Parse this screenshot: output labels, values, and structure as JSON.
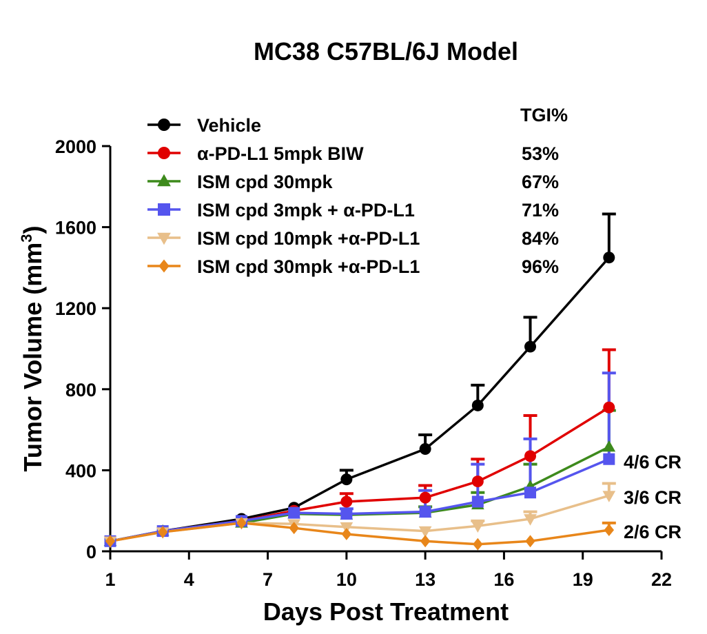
{
  "chart_data": {
    "type": "line",
    "title": "MC38 C57BL/6J Model",
    "xlabel": "Days Post Treatment",
    "ylabel": "Tumor Volume (mm",
    "ylabel_sup": "3",
    "ylabel_close": ")",
    "xlim": [
      1,
      22
    ],
    "ylim": [
      0,
      2000
    ],
    "xticks": [
      1,
      4,
      7,
      10,
      13,
      16,
      19,
      22
    ],
    "yticks": [
      0,
      400,
      800,
      1200,
      1600,
      2000
    ],
    "tgi_header": "TGI%",
    "series": [
      {
        "name": "Vehicle",
        "color": "#000000",
        "marker": "circle",
        "tgi": "",
        "x": [
          1,
          3,
          6,
          8,
          10,
          13,
          15,
          17,
          20
        ],
        "y": [
          50,
          100,
          160,
          215,
          355,
          505,
          720,
          1010,
          1450
        ],
        "err": [
          5,
          10,
          15,
          20,
          45,
          70,
          100,
          145,
          215
        ]
      },
      {
        "name": "α-PD-L1 5mpk BIW",
        "color": "#e00000",
        "marker": "circle",
        "tgi": "53%",
        "x": [
          1,
          3,
          6,
          8,
          10,
          13,
          15,
          17,
          20
        ],
        "y": [
          50,
          100,
          150,
          200,
          245,
          265,
          345,
          470,
          710
        ],
        "err": [
          5,
          8,
          12,
          15,
          40,
          60,
          110,
          200,
          285
        ]
      },
      {
        "name": "ISM cpd 30mpk",
        "color": "#3d8a1c",
        "marker": "triangle-up",
        "tgi": "67%",
        "x": [
          1,
          3,
          6,
          8,
          10,
          13,
          15,
          17,
          20
        ],
        "y": [
          50,
          100,
          140,
          185,
          180,
          190,
          230,
          320,
          515
        ],
        "err": [
          5,
          8,
          10,
          15,
          20,
          30,
          60,
          110,
          180
        ]
      },
      {
        "name": "ISM cpd 3mpk + α-PD-L1",
        "color": "#5555ee",
        "marker": "square",
        "tgi": "71%",
        "x": [
          1,
          3,
          6,
          8,
          10,
          13,
          15,
          17,
          20
        ],
        "y": [
          50,
          100,
          150,
          190,
          185,
          195,
          245,
          290,
          455
        ],
        "err": [
          5,
          8,
          10,
          15,
          25,
          105,
          185,
          265,
          425
        ]
      },
      {
        "name": "ISM cpd 10mpk +α-PD-L1",
        "color": "#e8bf8a",
        "marker": "triangle-down",
        "tgi": "84%",
        "x": [
          1,
          3,
          6,
          8,
          10,
          13,
          15,
          17,
          20
        ],
        "y": [
          50,
          95,
          140,
          135,
          120,
          100,
          125,
          160,
          275
        ],
        "err": [
          5,
          8,
          10,
          12,
          15,
          20,
          25,
          35,
          60
        ]
      },
      {
        "name": "ISM cpd 30mpk +α-PD-L1",
        "color": "#e8861a",
        "marker": "diamond",
        "tgi": "96%",
        "x": [
          1,
          3,
          6,
          8,
          10,
          13,
          15,
          17,
          20
        ],
        "y": [
          50,
          95,
          140,
          115,
          85,
          50,
          35,
          50,
          105
        ],
        "err": [
          5,
          8,
          10,
          10,
          10,
          8,
          6,
          8,
          35
        ]
      }
    ],
    "annotations": [
      {
        "text": "4/6 CR",
        "y": 450
      },
      {
        "text": "3/6 CR",
        "y": 275
      },
      {
        "text": "2/6 CR",
        "y": 105
      }
    ]
  }
}
